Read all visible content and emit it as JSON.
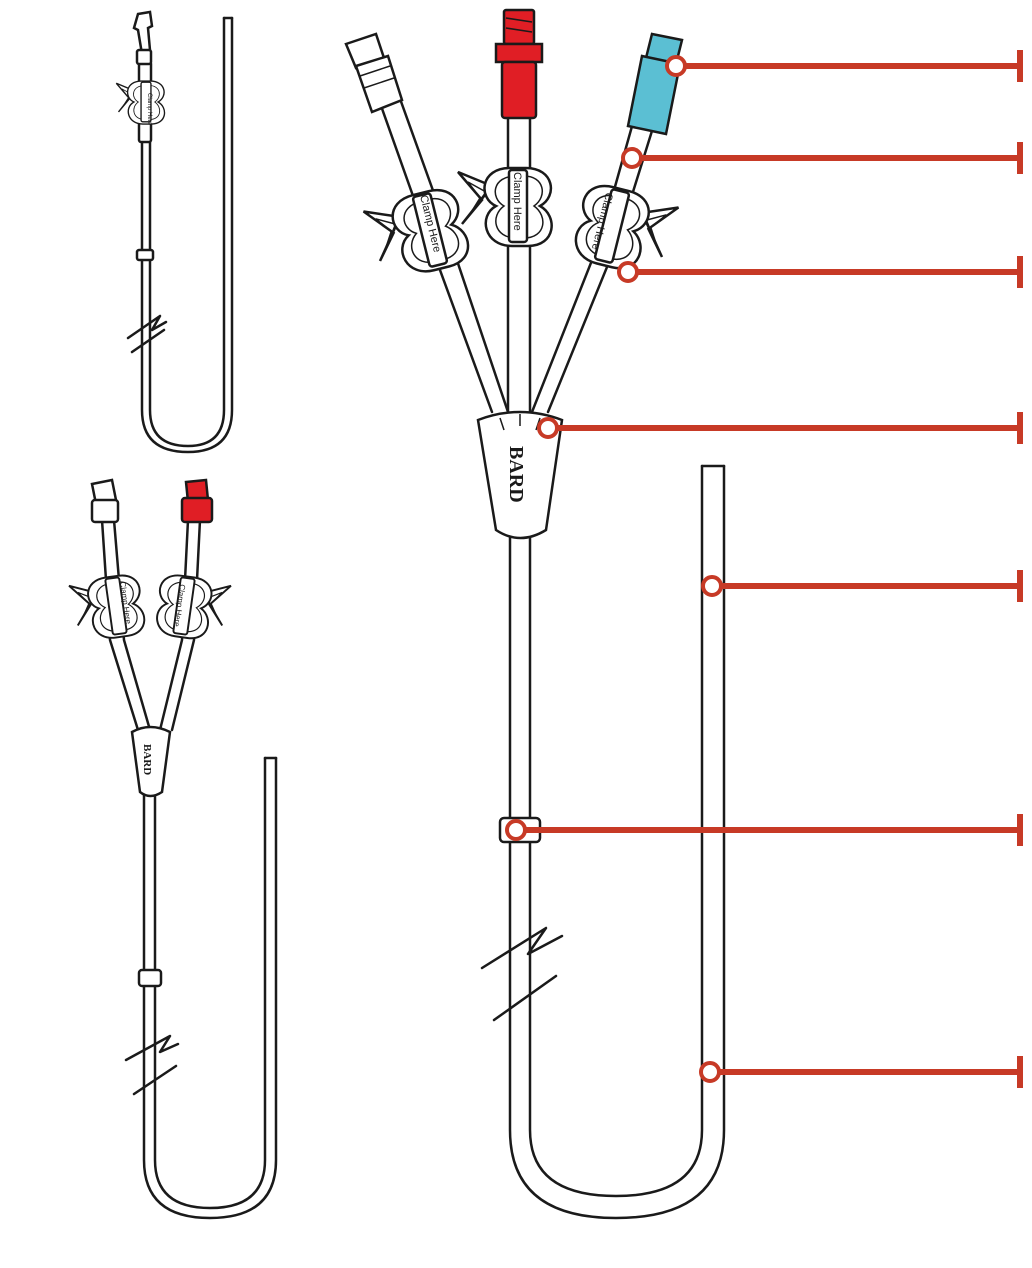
{
  "clamp": {
    "label": "Clamp Here"
  },
  "hub": {
    "brand": "BARD"
  },
  "colors": {
    "callout": "#c73a26",
    "outline": "#1a1a1a",
    "red_hub": "#e01e25",
    "blue_hub": "#5bbfd3",
    "white_hub": "#ffffff"
  },
  "variants": [
    "single-lumen",
    "dual-lumen",
    "triple-lumen"
  ],
  "callouts": {
    "count": 7,
    "labels": []
  }
}
